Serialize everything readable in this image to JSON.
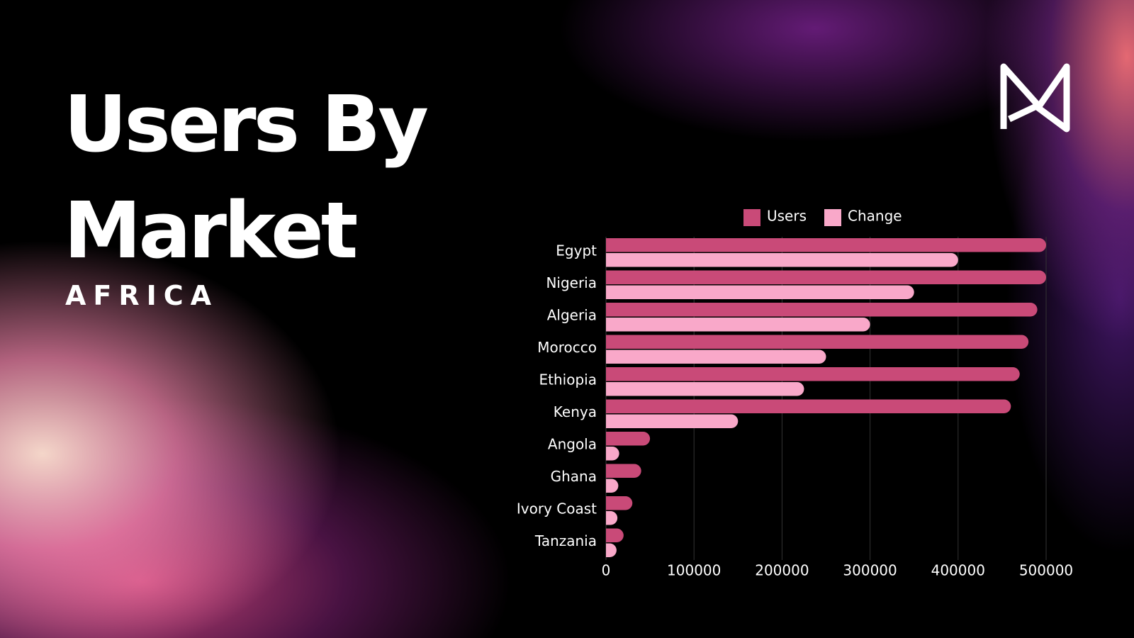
{
  "chart_data": {
    "type": "bar",
    "orientation": "horizontal",
    "title": "Users By Market",
    "subtitle": "AFRICA",
    "categories": [
      "Egypt",
      "Nigeria",
      "Algeria",
      "Morocco",
      "Ethiopia",
      "Kenya",
      "Angola",
      "Ghana",
      "Ivory Coast",
      "Tanzania"
    ],
    "series": [
      {
        "name": "Users",
        "color": "#c94a78",
        "values": [
          500000,
          500000,
          490000,
          480000,
          470000,
          460000,
          50000,
          40000,
          30000,
          20000
        ]
      },
      {
        "name": "Change",
        "color": "#f9a8c9",
        "values": [
          400000,
          350000,
          300000,
          250000,
          225000,
          150000,
          15000,
          14000,
          13000,
          12000
        ]
      }
    ],
    "xlim": [
      0,
      500000
    ],
    "xticks": [
      0,
      100000,
      200000,
      300000,
      400000,
      500000
    ],
    "grid": true,
    "legend": "top"
  }
}
